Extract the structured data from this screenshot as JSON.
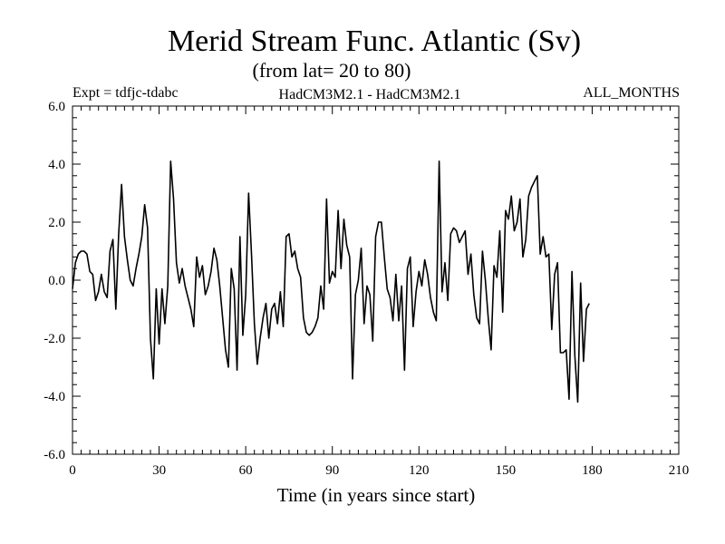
{
  "chart_data": {
    "type": "line",
    "title": "Merid Stream Func. Atlantic (Sv)",
    "subtitle": "(from lat= 20 to 80)",
    "expt_label": "Expt = tdfjc-tdabc",
    "model_label": "HadCM3M2.1 - HadCM3M2.1",
    "months_label": "ALL_MONTHS",
    "xlabel": "Time (in years since start)",
    "ylabel": "",
    "xlim": [
      0,
      210
    ],
    "ylim": [
      -6,
      6
    ],
    "x_ticks": [
      0,
      30,
      60,
      90,
      120,
      150,
      180,
      210
    ],
    "x_tick_labels": [
      "0",
      "30",
      "60",
      "90",
      "120",
      "150",
      "180",
      "210"
    ],
    "y_ticks": [
      -6,
      -4,
      -2,
      0,
      2,
      4,
      6
    ],
    "y_tick_labels": [
      "-6.0",
      "-4.0",
      "-2.0",
      "0.0",
      "2.0",
      "4.0",
      "6.0"
    ],
    "line_color": "#000000",
    "series": [
      {
        "name": "Merid Stream Func. Atlantic",
        "x_start": 0,
        "x_step": 1,
        "values": [
          -0.3,
          0.6,
          0.9,
          1.0,
          1.0,
          0.9,
          0.3,
          0.2,
          -0.7,
          -0.4,
          0.2,
          -0.4,
          -0.6,
          1.0,
          1.4,
          -1.0,
          1.6,
          3.3,
          1.5,
          0.7,
          0.0,
          -0.2,
          0.4,
          0.9,
          1.5,
          2.6,
          1.8,
          -2.0,
          -3.4,
          -0.3,
          -2.2,
          -0.3,
          -1.5,
          -0.2,
          4.1,
          2.8,
          0.6,
          -0.1,
          0.4,
          -0.2,
          -0.6,
          -1.0,
          -1.6,
          0.8,
          0.1,
          0.5,
          -0.5,
          -0.2,
          0.3,
          1.1,
          0.7,
          -0.2,
          -1.3,
          -2.4,
          -3.0,
          0.4,
          -0.3,
          -3.1,
          1.5,
          -1.9,
          -0.5,
          3.0,
          0.9,
          -1.5,
          -2.9,
          -2.0,
          -1.3,
          -0.8,
          -2.0,
          -1.0,
          -0.8,
          -1.5,
          -0.4,
          -1.6,
          1.5,
          1.6,
          0.8,
          1.0,
          0.4,
          0.1,
          -1.3,
          -1.8,
          -1.9,
          -1.8,
          -1.6,
          -1.3,
          -0.2,
          -1.0,
          2.8,
          -0.1,
          0.3,
          0.1,
          2.4,
          0.4,
          2.1,
          1.2,
          0.8,
          -3.4,
          -0.5,
          0.0,
          1.1,
          -1.5,
          -0.2,
          -0.5,
          -2.1,
          1.5,
          2.0,
          2.0,
          0.8,
          -0.3,
          -0.6,
          -1.4,
          0.2,
          -1.4,
          -0.2,
          -3.1,
          0.4,
          0.8,
          -1.6,
          -0.4,
          0.3,
          -0.2,
          0.7,
          0.2,
          -0.6,
          -1.1,
          -1.4,
          4.1,
          -0.4,
          0.6,
          -0.7,
          1.6,
          1.8,
          1.7,
          1.3,
          1.5,
          1.7,
          0.2,
          0.9,
          -0.5,
          -1.3,
          -1.5,
          1.0,
          0.0,
          -1.3,
          -2.4,
          0.5,
          0.1,
          1.7,
          -1.1,
          2.4,
          2.1,
          2.9,
          1.7,
          2.0,
          2.8,
          0.8,
          1.4,
          2.9,
          3.2,
          3.4,
          3.6,
          0.9,
          1.5,
          0.8,
          0.9,
          -1.7,
          0.2,
          0.6,
          -2.5,
          -2.5,
          -2.4,
          -4.1,
          0.3,
          -2.6,
          -4.2,
          -0.1,
          -2.8,
          -1.0,
          -0.8
        ]
      }
    ]
  }
}
